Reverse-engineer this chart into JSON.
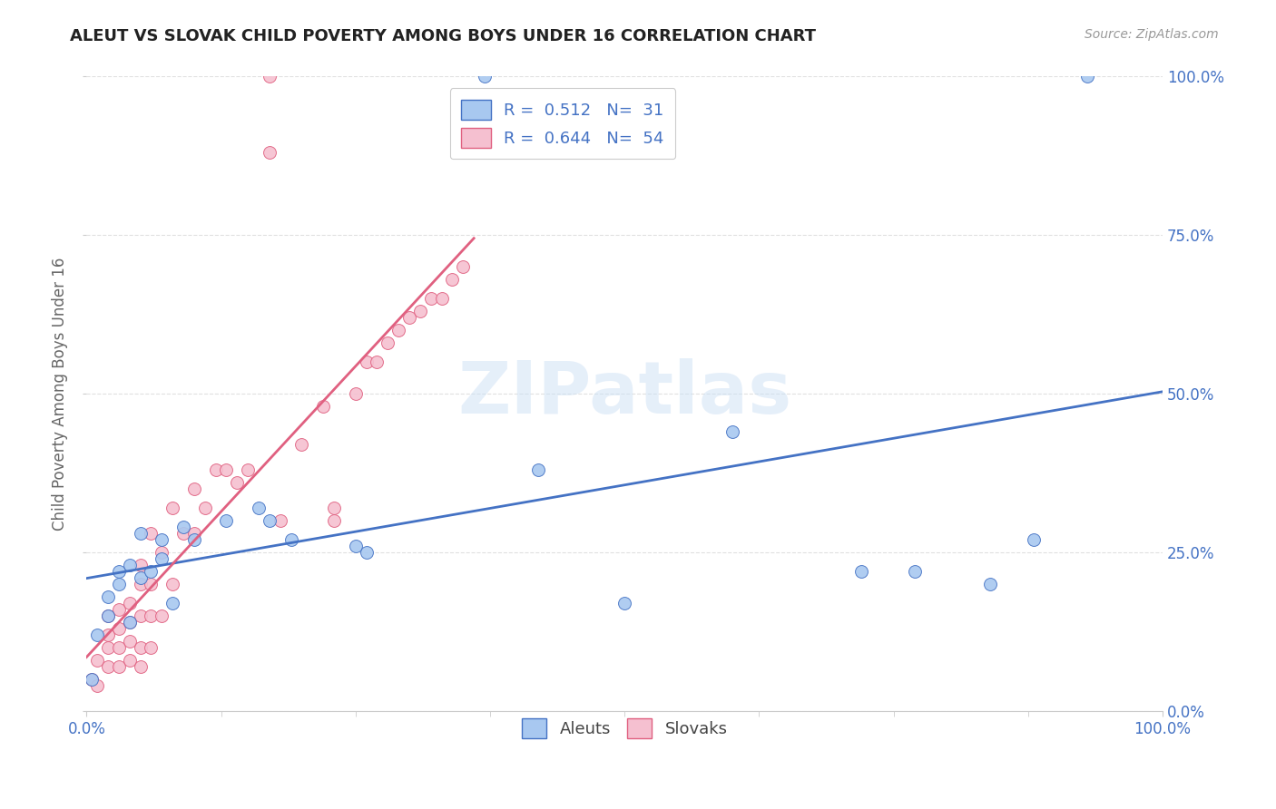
{
  "title": "ALEUT VS SLOVAK CHILD POVERTY AMONG BOYS UNDER 16 CORRELATION CHART",
  "source": "Source: ZipAtlas.com",
  "ylabel": "Child Poverty Among Boys Under 16",
  "xlim": [
    0,
    1
  ],
  "ylim": [
    0,
    1
  ],
  "xtick_positions": [
    0.0,
    1.0
  ],
  "xtick_labels": [
    "0.0%",
    "100.0%"
  ],
  "ytick_vals": [
    0.0,
    0.25,
    0.5,
    0.75,
    1.0
  ],
  "ytick_labels": [
    "0.0%",
    "25.0%",
    "50.0%",
    "75.0%",
    "100.0%"
  ],
  "aleuts_color": "#a8c8f0",
  "slovaks_color": "#f5c0d0",
  "aleuts_edge_color": "#4472c4",
  "slovaks_edge_color": "#e06080",
  "aleuts_line_color": "#4472c4",
  "slovaks_line_color": "#e06080",
  "R_aleuts": "0.512",
  "N_aleuts": "31",
  "R_slovaks": "0.644",
  "N_slovaks": "54",
  "watermark": "ZIPatlas",
  "legend_label_aleuts": "Aleuts",
  "legend_label_slovaks": "Slovaks",
  "aleuts_x": [
    0.005,
    0.01,
    0.02,
    0.02,
    0.03,
    0.03,
    0.04,
    0.04,
    0.05,
    0.05,
    0.06,
    0.07,
    0.07,
    0.08,
    0.09,
    0.1,
    0.13,
    0.16,
    0.17,
    0.19,
    0.25,
    0.26,
    0.37,
    0.42,
    0.5,
    0.6,
    0.72,
    0.77,
    0.84,
    0.88,
    0.93
  ],
  "aleuts_y": [
    0.05,
    0.12,
    0.15,
    0.18,
    0.2,
    0.22,
    0.14,
    0.23,
    0.21,
    0.28,
    0.22,
    0.24,
    0.27,
    0.17,
    0.29,
    0.27,
    0.3,
    0.32,
    0.3,
    0.27,
    0.26,
    0.25,
    1.0,
    0.38,
    0.17,
    0.44,
    0.22,
    0.22,
    0.2,
    0.27,
    1.0
  ],
  "slovaks_x": [
    0.005,
    0.01,
    0.01,
    0.02,
    0.02,
    0.02,
    0.02,
    0.03,
    0.03,
    0.03,
    0.03,
    0.04,
    0.04,
    0.04,
    0.04,
    0.05,
    0.05,
    0.05,
    0.05,
    0.05,
    0.06,
    0.06,
    0.06,
    0.06,
    0.07,
    0.07,
    0.08,
    0.08,
    0.09,
    0.1,
    0.1,
    0.11,
    0.12,
    0.13,
    0.14,
    0.15,
    0.17,
    0.17,
    0.18,
    0.2,
    0.22,
    0.23,
    0.23,
    0.25,
    0.26,
    0.27,
    0.28,
    0.29,
    0.3,
    0.31,
    0.32,
    0.33,
    0.34,
    0.35
  ],
  "slovaks_y": [
    0.05,
    0.04,
    0.08,
    0.07,
    0.1,
    0.12,
    0.15,
    0.07,
    0.1,
    0.13,
    0.16,
    0.08,
    0.11,
    0.14,
    0.17,
    0.07,
    0.1,
    0.15,
    0.2,
    0.23,
    0.1,
    0.15,
    0.2,
    0.28,
    0.15,
    0.25,
    0.2,
    0.32,
    0.28,
    0.28,
    0.35,
    0.32,
    0.38,
    0.38,
    0.36,
    0.38,
    1.0,
    0.88,
    0.3,
    0.42,
    0.48,
    0.32,
    0.3,
    0.5,
    0.55,
    0.55,
    0.58,
    0.6,
    0.62,
    0.63,
    0.65,
    0.65,
    0.68,
    0.7
  ],
  "background_color": "#ffffff",
  "grid_color": "#e0e0e0",
  "title_fontsize": 13,
  "label_fontsize": 12,
  "tick_fontsize": 12,
  "source_fontsize": 10
}
